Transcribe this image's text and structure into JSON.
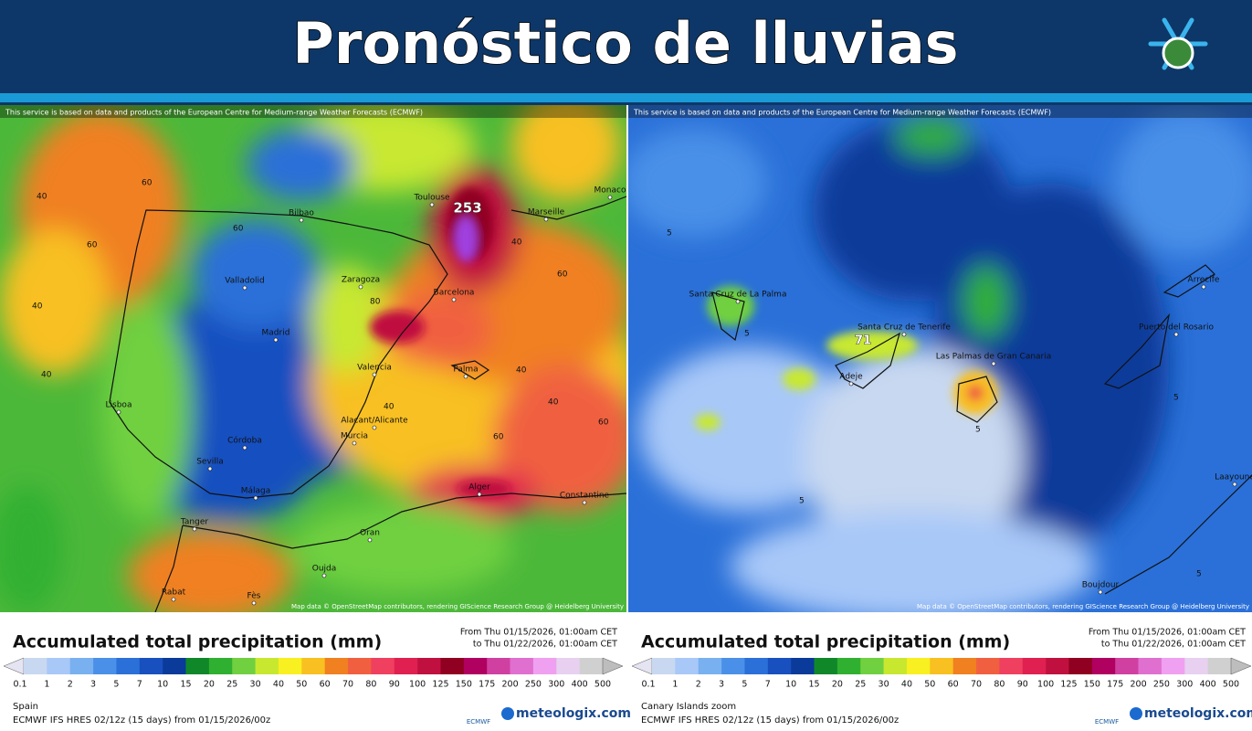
{
  "header": {
    "title": "Pronóstico de lluvias"
  },
  "panels": [
    {
      "attribution": "This service is based on data and products of the European Centre for Medium-range Weather Forecasts (ECMWF)",
      "map_credit": "Map data © OpenStreetMap contributors, rendering GIScience Research Group @ Heidelberg University",
      "max_value": "253",
      "places": [
        "Toulouse",
        "Marseille",
        "Monaco",
        "Bilbao",
        "Zaragoza",
        "Barcelona",
        "Valladolid",
        "Madrid",
        "Valencia",
        "Palma",
        "Lisboa",
        "Alacant/Alicante",
        "Murcia",
        "Córdoba",
        "Sevilla",
        "Málaga",
        "Alger",
        "Constantine",
        "Oran",
        "Oujda",
        "Tanger",
        "Rabat",
        "Fès"
      ],
      "contours": [
        "40",
        "60",
        "60",
        "40",
        "40",
        "60",
        "40",
        "60",
        "80",
        "40",
        "60",
        "40",
        "40",
        "60"
      ],
      "legend": {
        "title": "Accumulated total precipitation (mm)",
        "from": "From Thu 01/15/2026, 01:00am CET",
        "to": "to Thu 01/22/2026, 01:00am CET",
        "region": "Spain",
        "model": "ECMWF IFS HRES 02/12z (15 days) from 01/15/2026/00z",
        "logo": "meteologix.com",
        "centre": "ECMWF"
      }
    },
    {
      "attribution": "This service is based on data and products of the European Centre for Medium-range Weather Forecasts (ECMWF)",
      "map_credit": "Map data © OpenStreetMap contributors, rendering GIScience Research Group @ Heidelberg University",
      "max_value": "71",
      "places": [
        "Santa Cruz de La Palma",
        "Santa Cruz de Tenerife",
        "Adeje",
        "Las Palmas de Gran Canaria",
        "Arrecife",
        "Puerto del Rosario",
        "Laayoune",
        "Boujdour"
      ],
      "contours": [
        "5",
        "5",
        "5",
        "5",
        "5",
        "5"
      ],
      "legend": {
        "title": "Accumulated total precipitation (mm)",
        "from": "From Thu 01/15/2026, 01:00am CET",
        "to": "to Thu 01/22/2026, 01:00am CET",
        "region": "Canary Islands zoom",
        "model": "ECMWF IFS HRES 02/12z (15 days) from 01/15/2026/00z",
        "logo": "meteologix.com",
        "centre": "ECMWF"
      }
    }
  ],
  "scale": {
    "levels": [
      0.1,
      1,
      2,
      3,
      5,
      7,
      10,
      15,
      20,
      25,
      30,
      40,
      50,
      60,
      70,
      80,
      90,
      100,
      125,
      150,
      175,
      200,
      250,
      300,
      400,
      500
    ],
    "colors": [
      "#e4e4f2",
      "#c8d8f0",
      "#a8c8f8",
      "#78b0f0",
      "#4a90e8",
      "#2a70d8",
      "#1850c0",
      "#0a3a9a",
      "#10882a",
      "#30b030",
      "#70d040",
      "#c8e830",
      "#f8f020",
      "#f8c020",
      "#f08020",
      "#f06040",
      "#f04060",
      "#e02050",
      "#c01040",
      "#900020",
      "#b00060",
      "#d040a0",
      "#e070d0",
      "#f0a0f0",
      "#e8d0f0",
      "#d0d0d0",
      "#bdbdbd"
    ]
  }
}
